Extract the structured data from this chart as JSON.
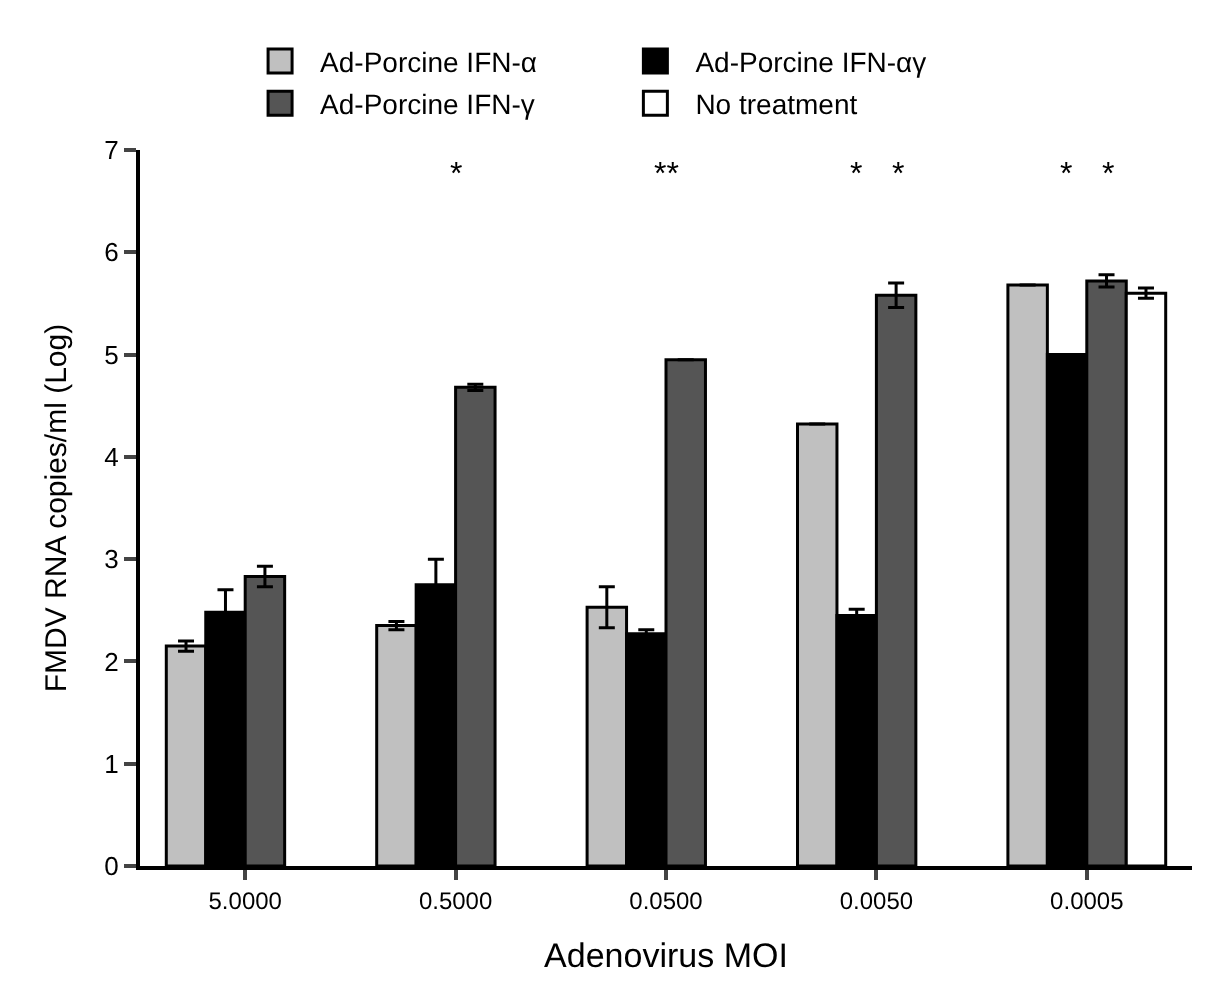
{
  "chart_data": {
    "type": "bar",
    "xlabel": "Adenovirus MOI",
    "ylabel": "FMDV RNA copies/ml (Log)",
    "categories": [
      "5.0000",
      "0.5000",
      "0.0500",
      "0.0050",
      "0.0005"
    ],
    "series": [
      {
        "name": "Ad-Porcine IFN-α",
        "color": "#c0c0c0",
        "values": [
          2.15,
          2.35,
          2.53,
          4.32,
          5.68
        ],
        "errors": [
          0.05,
          0.04,
          0.2,
          null,
          null
        ]
      },
      {
        "name": "Ad-Porcine IFN-αγ",
        "color": "#000000",
        "values": [
          2.48,
          2.75,
          2.27,
          2.45,
          5.0
        ],
        "errors": [
          0.22,
          0.25,
          0.04,
          0.06,
          null
        ]
      },
      {
        "name": "Ad-Porcine IFN-γ",
        "color": "#555555",
        "values": [
          2.83,
          4.68,
          4.95,
          5.58,
          5.72
        ],
        "errors": [
          0.1,
          0.03,
          null,
          0.12,
          0.06
        ]
      },
      {
        "name": "No treatment",
        "color": "#ffffff",
        "values": [
          null,
          null,
          null,
          null,
          5.6
        ],
        "errors": [
          null,
          null,
          null,
          null,
          0.05
        ]
      }
    ],
    "ylim": [
      0,
      7
    ],
    "yticks": [
      0,
      1,
      2,
      3,
      4,
      5,
      6,
      7
    ],
    "legend": "top",
    "annotations": [
      "*",
      "**",
      "*",
      "*",
      "*",
      "*"
    ]
  }
}
